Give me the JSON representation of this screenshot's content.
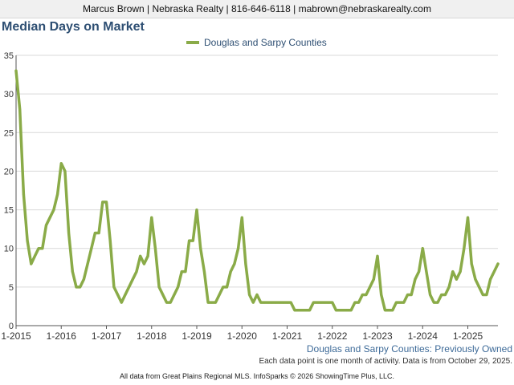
{
  "header": {
    "agent_line": "Marcus Brown | Nebraska Realty | 816-646-6118 | mabrown@nebraskarealty.com"
  },
  "footer": {
    "subtitle": "Douglas and Sarpy Counties: Previously Owned",
    "note": "Each data point is one month of activity. Data is from October 29, 2025.",
    "source": "All data from Great Plains Regional MLS. InfoSparks © 2026 ShowingTime Plus, LLC."
  },
  "colors": {
    "series": "#8aab48",
    "title": "#2e4f73",
    "subtitle": "#3d6a98",
    "grid": "#d9d9d9",
    "axis": "#555555"
  },
  "chart_data": {
    "type": "line",
    "title": "Median Days on Market",
    "xlabel": "",
    "ylabel": "",
    "ylim": [
      0,
      35
    ],
    "yticks": [
      0,
      5,
      10,
      15,
      20,
      25,
      30,
      35
    ],
    "xticks": [
      "1-2015",
      "1-2016",
      "1-2017",
      "1-2018",
      "1-2019",
      "1-2020",
      "1-2021",
      "1-2022",
      "1-2023",
      "1-2024",
      "1-2025"
    ],
    "grid": true,
    "legend_position": "top",
    "x_start": "2015-01",
    "x_end": "2025-09",
    "series": [
      {
        "name": "Douglas and Sarpy Counties",
        "color": "#8aab48",
        "values": [
          33,
          28,
          17,
          11,
          8,
          9,
          10,
          10,
          13,
          14,
          15,
          17,
          21,
          20,
          12,
          7,
          5,
          5,
          6,
          8,
          10,
          12,
          12,
          16,
          16,
          11,
          5,
          4,
          3,
          4,
          5,
          6,
          7,
          9,
          8,
          9,
          14,
          10,
          5,
          4,
          3,
          3,
          4,
          5,
          7,
          7,
          11,
          11,
          15,
          10,
          7,
          3,
          3,
          3,
          4,
          5,
          5,
          7,
          8,
          10,
          14,
          8,
          4,
          3,
          4,
          3,
          3,
          3,
          3,
          3,
          3,
          3,
          3,
          3,
          2,
          2,
          2,
          2,
          2,
          3,
          3,
          3,
          3,
          3,
          3,
          2,
          2,
          2,
          2,
          2,
          3,
          3,
          4,
          4,
          5,
          6,
          9,
          4,
          2,
          2,
          2,
          3,
          3,
          3,
          4,
          4,
          6,
          7,
          10,
          7,
          4,
          3,
          3,
          4,
          4,
          5,
          7,
          6,
          7,
          10,
          14,
          8,
          6,
          5,
          4,
          4,
          6,
          7,
          8
        ]
      }
    ]
  }
}
